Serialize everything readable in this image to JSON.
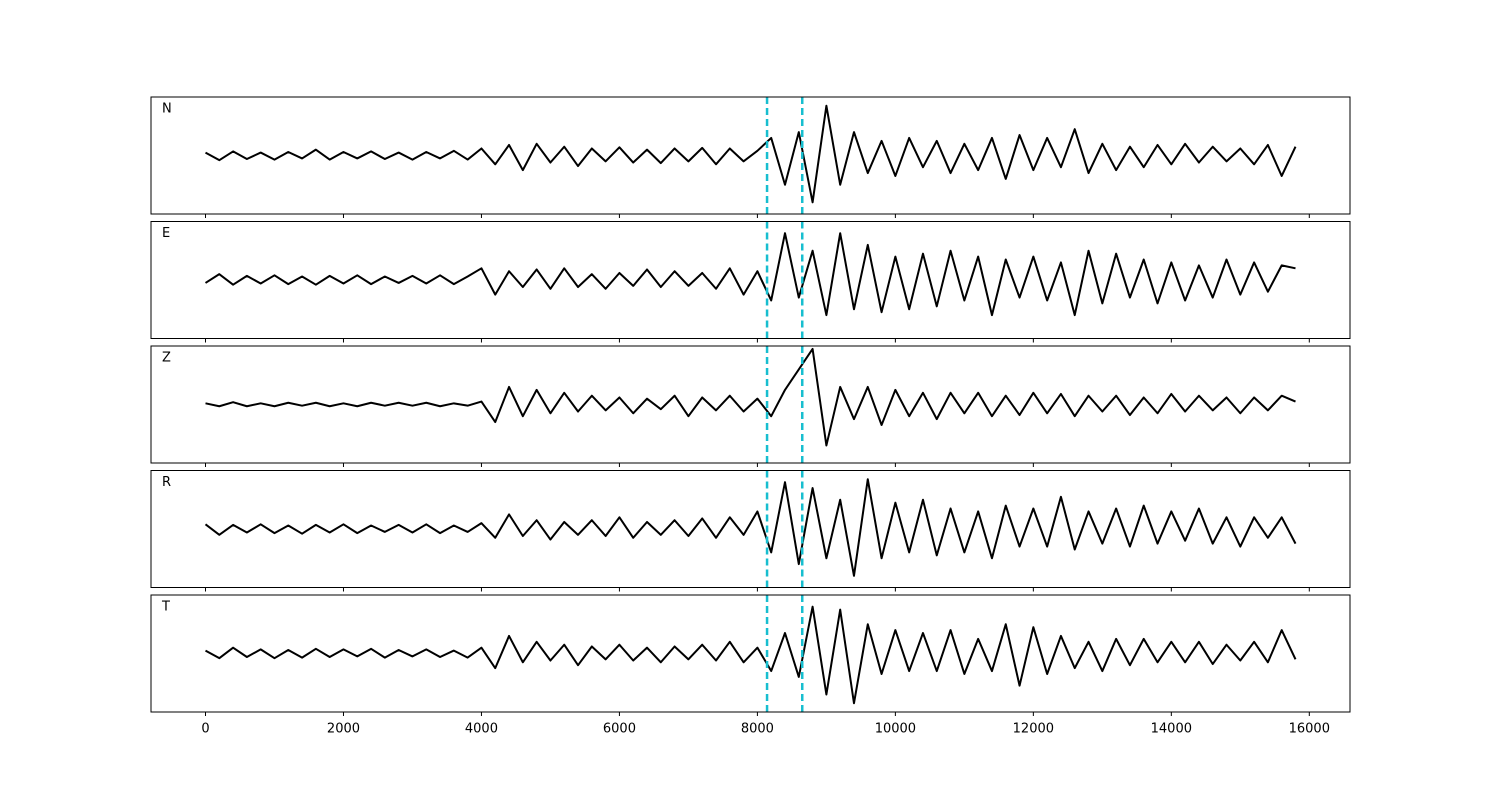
{
  "chart_data": [
    {
      "type": "line",
      "label": "N",
      "color": "#000000",
      "vlines": [
        8140,
        8650
      ],
      "vline_color": "#17becf",
      "xlim": [
        -790,
        16590
      ],
      "ylim": [
        -1,
        1
      ],
      "xticks": [
        0,
        2000,
        4000,
        6000,
        8000,
        10000,
        12000,
        14000,
        16000
      ],
      "x": [
        0,
        200,
        400,
        600,
        800,
        1000,
        1200,
        1400,
        1600,
        1800,
        2000,
        2200,
        2400,
        2600,
        2800,
        3000,
        3200,
        3400,
        3600,
        3800,
        4000,
        4200,
        4400,
        4600,
        4800,
        5000,
        5200,
        5400,
        5600,
        5800,
        6000,
        6200,
        6400,
        6600,
        6800,
        7000,
        7200,
        7400,
        7600,
        7800,
        8000,
        8200,
        8400,
        8600,
        8800,
        9000,
        9200,
        9400,
        9600,
        9800,
        10000,
        10200,
        10400,
        10600,
        10800,
        11000,
        11200,
        11400,
        11600,
        11800,
        12000,
        12200,
        12400,
        12600,
        12800,
        13000,
        13200,
        13400,
        13600,
        13800,
        14000,
        14200,
        14400,
        14600,
        14800,
        15000,
        15200,
        15400,
        15600,
        15800
      ],
      "values": [
        0.05,
        -0.08,
        0.07,
        -0.06,
        0.05,
        -0.07,
        0.06,
        -0.05,
        0.1,
        -0.07,
        0.06,
        -0.05,
        0.07,
        -0.06,
        0.05,
        -0.07,
        0.06,
        -0.05,
        0.08,
        -0.07,
        0.12,
        -0.15,
        0.18,
        -0.25,
        0.2,
        -0.12,
        0.15,
        -0.18,
        0.12,
        -0.1,
        0.14,
        -0.12,
        0.1,
        -0.13,
        0.12,
        -0.1,
        0.13,
        -0.15,
        0.12,
        -0.1,
        0.08,
        0.3,
        -0.5,
        0.4,
        -0.8,
        0.85,
        -0.5,
        0.4,
        -0.3,
        0.25,
        -0.35,
        0.3,
        -0.2,
        0.25,
        -0.3,
        0.2,
        -0.25,
        0.3,
        -0.4,
        0.35,
        -0.25,
        0.3,
        -0.2,
        0.45,
        -0.3,
        0.2,
        -0.25,
        0.15,
        -0.2,
        0.18,
        -0.15,
        0.2,
        -0.12,
        0.15,
        -0.1,
        0.12,
        -0.15,
        0.18,
        -0.35,
        0.15
      ]
    },
    {
      "type": "line",
      "label": "E",
      "color": "#000000",
      "vlines": [
        8140,
        8650
      ],
      "vline_color": "#17becf",
      "xlim": [
        -790,
        16590
      ],
      "ylim": [
        -1,
        1
      ],
      "xticks": [
        0,
        2000,
        4000,
        6000,
        8000,
        10000,
        12000,
        14000,
        16000
      ],
      "x": [
        0,
        200,
        400,
        600,
        800,
        1000,
        1200,
        1400,
        1600,
        1800,
        2000,
        2200,
        2400,
        2600,
        2800,
        3000,
        3200,
        3400,
        3600,
        3800,
        4000,
        4200,
        4400,
        4600,
        4800,
        5000,
        5200,
        5400,
        5600,
        5800,
        6000,
        6200,
        6400,
        6600,
        6800,
        7000,
        7200,
        7400,
        7600,
        7800,
        8000,
        8200,
        8400,
        8600,
        8800,
        9000,
        9200,
        9400,
        9600,
        9800,
        10000,
        10200,
        10400,
        10600,
        10800,
        11000,
        11200,
        11400,
        11600,
        11800,
        12000,
        12200,
        12400,
        12600,
        12800,
        13000,
        13200,
        13400,
        13600,
        13800,
        14000,
        14200,
        14400,
        14600,
        14800,
        15000,
        15200,
        15400,
        15600,
        15800
      ],
      "values": [
        -0.05,
        0.1,
        -0.08,
        0.07,
        -0.06,
        0.08,
        -0.07,
        0.06,
        -0.08,
        0.07,
        -0.06,
        0.08,
        -0.07,
        0.06,
        -0.05,
        0.07,
        -0.06,
        0.08,
        -0.07,
        0.06,
        0.2,
        -0.25,
        0.15,
        -0.12,
        0.18,
        -0.15,
        0.2,
        -0.12,
        0.1,
        -0.15,
        0.12,
        -0.1,
        0.18,
        -0.12,
        0.15,
        -0.1,
        0.12,
        -0.15,
        0.2,
        -0.25,
        0.15,
        -0.35,
        0.8,
        -0.3,
        0.5,
        -0.6,
        0.8,
        -0.5,
        0.6,
        -0.55,
        0.4,
        -0.5,
        0.45,
        -0.45,
        0.5,
        -0.35,
        0.4,
        -0.6,
        0.35,
        -0.3,
        0.4,
        -0.35,
        0.3,
        -0.6,
        0.5,
        -0.4,
        0.45,
        -0.3,
        0.35,
        -0.4,
        0.3,
        -0.35,
        0.25,
        -0.3,
        0.35,
        -0.25,
        0.3,
        -0.2,
        0.25,
        0.2
      ]
    },
    {
      "type": "line",
      "label": "Z",
      "color": "#000000",
      "vlines": [
        8140,
        8650
      ],
      "vline_color": "#17becf",
      "xlim": [
        -790,
        16590
      ],
      "ylim": [
        -1,
        1
      ],
      "xticks": [
        0,
        2000,
        4000,
        6000,
        8000,
        10000,
        12000,
        14000,
        16000
      ],
      "x": [
        0,
        200,
        400,
        600,
        800,
        1000,
        1200,
        1400,
        1600,
        1800,
        2000,
        2200,
        2400,
        2600,
        2800,
        3000,
        3200,
        3400,
        3600,
        3800,
        4000,
        4200,
        4400,
        4600,
        4800,
        5000,
        5200,
        5400,
        5600,
        5800,
        6000,
        6200,
        6400,
        6600,
        6800,
        7000,
        7200,
        7400,
        7600,
        7800,
        8000,
        8200,
        8400,
        8600,
        8800,
        9000,
        9200,
        9400,
        9600,
        9800,
        10000,
        10200,
        10400,
        10600,
        10800,
        11000,
        11200,
        11400,
        11600,
        11800,
        12000,
        12200,
        12400,
        12600,
        12800,
        13000,
        13200,
        13400,
        13600,
        13800,
        14000,
        14200,
        14400,
        14600,
        14800,
        15000,
        15200,
        15400,
        15600,
        15800
      ],
      "values": [
        0.02,
        -0.03,
        0.04,
        -0.03,
        0.02,
        -0.03,
        0.03,
        -0.02,
        0.03,
        -0.03,
        0.02,
        -0.03,
        0.03,
        -0.02,
        0.03,
        -0.02,
        0.03,
        -0.03,
        0.02,
        -0.02,
        0.05,
        -0.3,
        0.3,
        -0.2,
        0.25,
        -0.15,
        0.2,
        -0.12,
        0.15,
        -0.1,
        0.12,
        -0.15,
        0.1,
        -0.08,
        0.15,
        -0.2,
        0.12,
        -0.1,
        0.15,
        -0.12,
        0.1,
        -0.2,
        0.25,
        0.6,
        0.95,
        -0.7,
        0.3,
        -0.25,
        0.3,
        -0.35,
        0.25,
        -0.2,
        0.2,
        -0.25,
        0.2,
        -0.15,
        0.2,
        -0.2,
        0.15,
        -0.18,
        0.2,
        -0.15,
        0.18,
        -0.2,
        0.15,
        -0.12,
        0.15,
        -0.18,
        0.12,
        -0.15,
        0.18,
        -0.12,
        0.15,
        -0.1,
        0.12,
        -0.15,
        0.12,
        -0.1,
        0.15,
        0.05
      ]
    },
    {
      "type": "line",
      "label": "R",
      "color": "#000000",
      "vlines": [
        8140,
        8650
      ],
      "vline_color": "#17becf",
      "xlim": [
        -790,
        16590
      ],
      "ylim": [
        -1,
        1
      ],
      "xticks": [
        0,
        2000,
        4000,
        6000,
        8000,
        10000,
        12000,
        14000,
        16000
      ],
      "x": [
        0,
        200,
        400,
        600,
        800,
        1000,
        1200,
        1400,
        1600,
        1800,
        2000,
        2200,
        2400,
        2600,
        2800,
        3000,
        3200,
        3400,
        3600,
        3800,
        4000,
        4200,
        4400,
        4600,
        4800,
        5000,
        5200,
        5400,
        5600,
        5800,
        6000,
        6200,
        6400,
        6600,
        6800,
        7000,
        7200,
        7400,
        7600,
        7800,
        8000,
        8200,
        8400,
        8600,
        8800,
        9000,
        9200,
        9400,
        9600,
        9800,
        10000,
        10200,
        10400,
        10600,
        10800,
        11000,
        11200,
        11400,
        11600,
        11800,
        12000,
        12200,
        12400,
        12600,
        12800,
        13000,
        13200,
        13400,
        13600,
        13800,
        14000,
        14200,
        14400,
        14600,
        14800,
        15000,
        15200,
        15400,
        15600,
        15800
      ],
      "values": [
        0.08,
        -0.1,
        0.07,
        -0.06,
        0.08,
        -0.07,
        0.06,
        -0.08,
        0.07,
        -0.06,
        0.08,
        -0.07,
        0.06,
        -0.05,
        0.07,
        -0.06,
        0.08,
        -0.07,
        0.06,
        -0.05,
        0.1,
        -0.15,
        0.25,
        -0.12,
        0.15,
        -0.18,
        0.12,
        -0.1,
        0.15,
        -0.12,
        0.2,
        -0.15,
        0.12,
        -0.1,
        0.15,
        -0.12,
        0.18,
        -0.15,
        0.2,
        -0.1,
        0.3,
        -0.4,
        0.8,
        -0.6,
        0.7,
        -0.5,
        0.5,
        -0.8,
        0.85,
        -0.5,
        0.45,
        -0.4,
        0.5,
        -0.45,
        0.35,
        -0.4,
        0.3,
        -0.5,
        0.4,
        -0.3,
        0.35,
        -0.3,
        0.55,
        -0.35,
        0.3,
        -0.25,
        0.35,
        -0.3,
        0.4,
        -0.25,
        0.3,
        -0.2,
        0.35,
        -0.25,
        0.2,
        -0.3,
        0.2,
        -0.15,
        0.2,
        -0.25
      ]
    },
    {
      "type": "line",
      "label": "T",
      "color": "#000000",
      "vlines": [
        8140,
        8650
      ],
      "vline_color": "#17becf",
      "xlim": [
        -790,
        16590
      ],
      "ylim": [
        -1,
        1
      ],
      "xticks": [
        0,
        2000,
        4000,
        6000,
        8000,
        10000,
        12000,
        14000,
        16000
      ],
      "x": [
        0,
        200,
        400,
        600,
        800,
        1000,
        1200,
        1400,
        1600,
        1800,
        2000,
        2200,
        2400,
        2600,
        2800,
        3000,
        3200,
        3400,
        3600,
        3800,
        4000,
        4200,
        4400,
        4600,
        4800,
        5000,
        5200,
        5400,
        5600,
        5800,
        6000,
        6200,
        6400,
        6600,
        6800,
        7000,
        7200,
        7400,
        7600,
        7800,
        8000,
        8200,
        8400,
        8600,
        8800,
        9000,
        9200,
        9400,
        9600,
        9800,
        10000,
        10200,
        10400,
        10600,
        10800,
        11000,
        11200,
        11400,
        11600,
        11800,
        12000,
        12200,
        12400,
        12600,
        12800,
        13000,
        13200,
        13400,
        13600,
        13800,
        14000,
        14200,
        14400,
        14600,
        14800,
        15000,
        15200,
        15400,
        15600,
        15800
      ],
      "values": [
        0.05,
        -0.08,
        0.1,
        -0.06,
        0.07,
        -0.08,
        0.06,
        -0.07,
        0.08,
        -0.06,
        0.07,
        -0.05,
        0.08,
        -0.07,
        0.06,
        -0.05,
        0.07,
        -0.06,
        0.05,
        -0.07,
        0.1,
        -0.25,
        0.3,
        -0.15,
        0.2,
        -0.12,
        0.15,
        -0.2,
        0.12,
        -0.1,
        0.15,
        -0.12,
        0.1,
        -0.15,
        0.12,
        -0.1,
        0.15,
        -0.12,
        0.2,
        -0.15,
        0.1,
        -0.3,
        0.35,
        -0.4,
        0.8,
        -0.7,
        0.75,
        -0.85,
        0.5,
        -0.35,
        0.4,
        -0.3,
        0.35,
        -0.3,
        0.4,
        -0.35,
        0.25,
        -0.3,
        0.5,
        -0.55,
        0.45,
        -0.35,
        0.3,
        -0.25,
        0.2,
        -0.3,
        0.25,
        -0.2,
        0.25,
        -0.15,
        0.2,
        -0.15,
        0.2,
        -0.18,
        0.15,
        -0.12,
        0.2,
        -0.15,
        0.4,
        -0.1
      ]
    }
  ]
}
